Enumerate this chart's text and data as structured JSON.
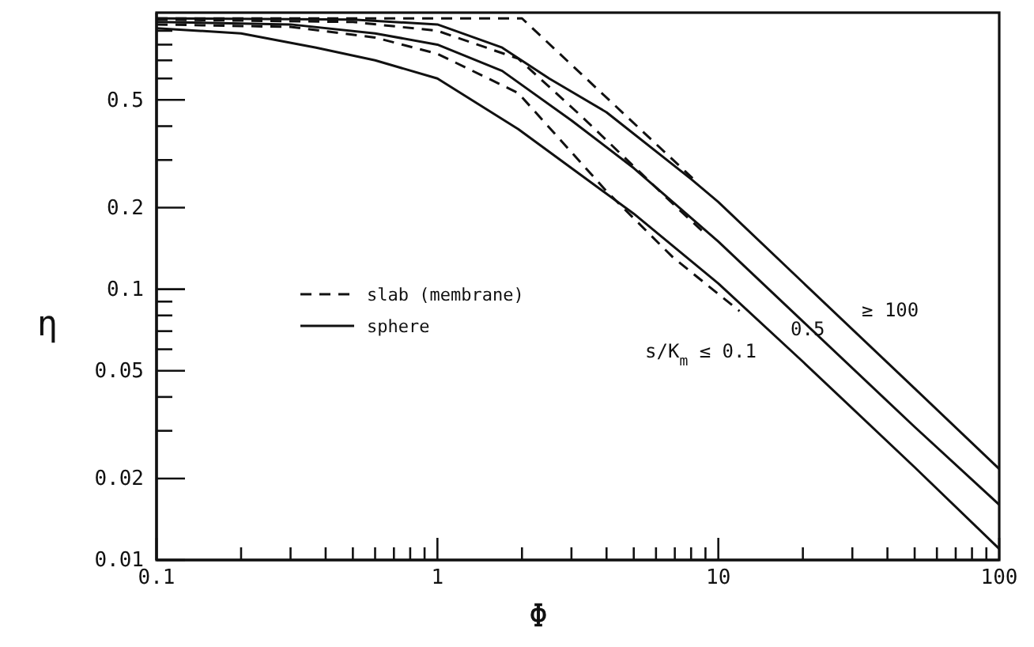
{
  "chart_data": {
    "type": "line",
    "xlabel": "Φ",
    "ylabel": "η",
    "log": "xy",
    "legend": "left",
    "xlim": [
      0.1,
      100
    ],
    "ylim": [
      0.01,
      1.05
    ],
    "xticks": [
      0.1,
      {
        "value": 0.2,
        "label": null
      },
      {
        "value": 0.3,
        "label": null
      },
      {
        "value": 0.4,
        "label": null
      },
      {
        "value": 0.5,
        "label": null
      },
      {
        "value": 0.6,
        "label": null
      },
      {
        "value": 0.7,
        "label": null
      },
      {
        "value": 0.8,
        "label": null
      },
      {
        "value": 0.9,
        "label": null
      },
      1,
      {
        "value": 2,
        "label": null
      },
      {
        "value": 3,
        "label": null
      },
      {
        "value": 4,
        "label": null
      },
      {
        "value": 5,
        "label": null
      },
      {
        "value": 6,
        "label": null
      },
      {
        "value": 7,
        "label": null
      },
      {
        "value": 8,
        "label": null
      },
      {
        "value": 9,
        "label": null
      },
      10,
      {
        "value": 20,
        "label": null
      },
      {
        "value": 30,
        "label": null
      },
      {
        "value": 40,
        "label": null
      },
      {
        "value": 50,
        "label": null
      },
      {
        "value": 60,
        "label": null
      },
      {
        "value": 70,
        "label": null
      },
      {
        "value": 80,
        "label": null
      },
      {
        "value": 90,
        "label": null
      },
      100
    ],
    "yticks": [
      0.01,
      0.02,
      {
        "value": 0.03,
        "label": null
      },
      {
        "value": 0.04,
        "label": null
      },
      0.05,
      {
        "value": 0.06,
        "label": null
      },
      {
        "value": 0.07,
        "label": null
      },
      {
        "value": 0.08,
        "label": null
      },
      {
        "value": 0.09,
        "label": null
      },
      0.1,
      0.2,
      {
        "value": 0.3,
        "label": null
      },
      {
        "value": 0.4,
        "label": null
      },
      0.5,
      {
        "value": 0.6,
        "label": null
      },
      {
        "value": 0.7,
        "label": null
      },
      {
        "value": 0.8,
        "label": null
      },
      {
        "value": 0.9,
        "label": null
      }
    ],
    "series": [
      {
        "name": "slab (membrane)",
        "color": "#111111",
        "line_style": "dashed",
        "x": [
          0.1,
          2,
          8.16
        ],
        "values": [
          1.0,
          1.0,
          0.255
        ]
      },
      {
        "color": "#111111",
        "line_style": "dashed",
        "x": [
          0.1,
          0.5,
          1,
          1.94,
          3.22,
          4.9,
          7.2,
          9
        ],
        "values": [
          0.99,
          0.97,
          0.9,
          0.71,
          0.44,
          0.29,
          0.198,
          0.16
        ]
      },
      {
        "color": "#111111",
        "line_style": "dashed",
        "x": [
          0.1,
          0.3,
          0.6,
          1,
          1.94,
          4,
          6.9,
          11.9
        ],
        "values": [
          0.95,
          0.93,
          0.85,
          0.74,
          0.53,
          0.23,
          0.131,
          0.083
        ]
      },
      {
        "name": "sphere",
        "color": "#111111",
        "line_style": "solid",
        "x": [
          0.1,
          0.5,
          1,
          1.7,
          2.5,
          4,
          8,
          10,
          20,
          50,
          100
        ],
        "values": [
          1.0,
          0.99,
          0.95,
          0.78,
          0.6,
          0.45,
          0.255,
          0.21,
          0.106,
          0.043,
          0.0217
        ]
      },
      {
        "color": "#111111",
        "line_style": "solid",
        "x": [
          0.1,
          0.3,
          0.6,
          1,
          1.7,
          3,
          5,
          10,
          20,
          50,
          100
        ],
        "values": [
          0.97,
          0.95,
          0.88,
          0.8,
          0.64,
          0.42,
          0.28,
          0.15,
          0.076,
          0.031,
          0.016
        ]
      },
      {
        "color": "#111111",
        "line_style": "solid",
        "x": [
          0.1,
          0.2,
          0.37,
          0.6,
          1,
          1.94,
          3,
          5,
          10,
          20,
          50,
          100
        ],
        "values": [
          0.92,
          0.88,
          0.78,
          0.7,
          0.6,
          0.39,
          0.28,
          0.19,
          0.105,
          0.054,
          0.022,
          0.011
        ]
      }
    ],
    "annotations": [
      "≥ 100",
      "0.5",
      "s/K$_{m}$ ≤ 0.1"
    ]
  }
}
